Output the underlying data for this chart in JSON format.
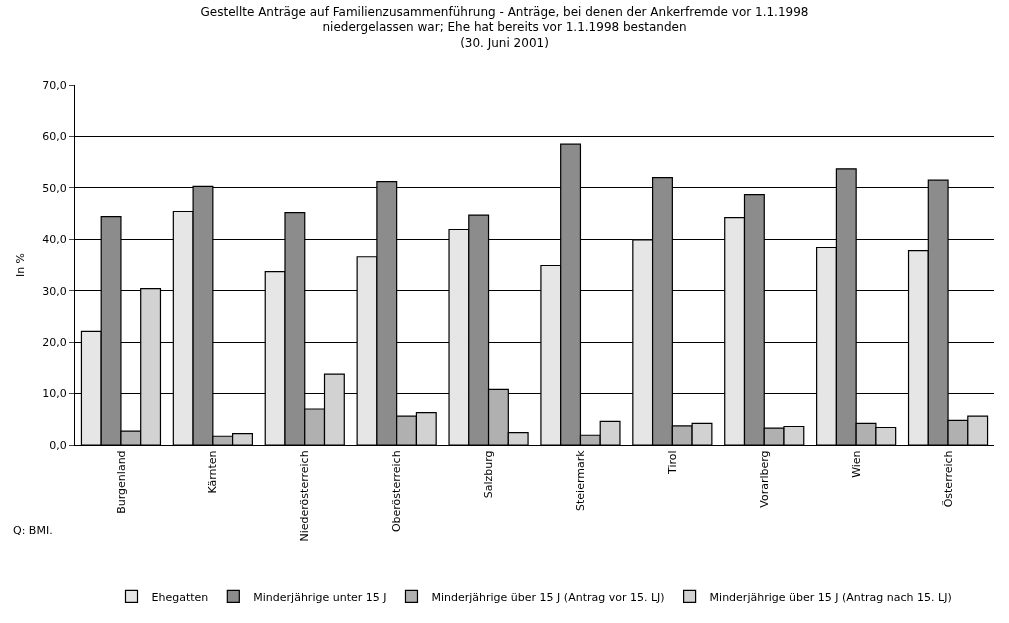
{
  "chart_data": {
    "type": "bar",
    "title": "Gestellte Anträge auf Familienzusammenführung - Anträge, bei denen der Ankerfremde vor 1.1.1998\nniedergelassen war; Ehe hat bereits vor 1.1.1998 bestanden\n(30. Juni 2001)",
    "ylabel": "In %",
    "categories": [
      "Burgenland",
      "Kärnten",
      "Niederösterreich",
      "Oberösterreich",
      "Salzburg",
      "Steiermark",
      "Tirol",
      "Vorarlberg",
      "Wien",
      "Österreich"
    ],
    "series": [
      {
        "name": "Ehegatten",
        "color": "#e6e6e6",
        "values": [
          22.1,
          45.4,
          33.7,
          36.6,
          41.9,
          34.9,
          39.9,
          44.2,
          38.4,
          37.8
        ]
      },
      {
        "name": "Minderjährige unter 15 J",
        "color": "#8c8c8c",
        "values": [
          44.4,
          50.3,
          45.2,
          51.2,
          44.7,
          58.5,
          52.0,
          48.7,
          53.7,
          51.5
        ]
      },
      {
        "name": "Minderjährige über 15 J (Antrag vor 15. LJ)",
        "color": "#b0b0b0",
        "values": [
          2.7,
          1.7,
          7.0,
          5.6,
          10.8,
          1.9,
          3.7,
          3.3,
          4.2,
          4.8
        ]
      },
      {
        "name": "Minderjährige über 15 J (Antrag nach 15. LJ)",
        "color": "#d2d2d2",
        "values": [
          30.4,
          2.2,
          13.8,
          6.3,
          2.4,
          4.6,
          4.2,
          3.6,
          3.4,
          5.6
        ]
      }
    ],
    "ylim": [
      0,
      70
    ],
    "yticks": [
      {
        "value": 0,
        "label": "0,0"
      },
      {
        "value": 10,
        "label": "10,0"
      },
      {
        "value": 20,
        "label": "20,0"
      },
      {
        "value": 30,
        "label": "30,0"
      },
      {
        "value": 40,
        "label": "40,0"
      },
      {
        "value": 50,
        "label": "50,0"
      },
      {
        "value": 60,
        "label": "60,0"
      },
      {
        "value": 70,
        "label": "70,0"
      }
    ],
    "grid": "y",
    "legend": "bottom",
    "annotations": [
      "Q: BMI."
    ]
  }
}
